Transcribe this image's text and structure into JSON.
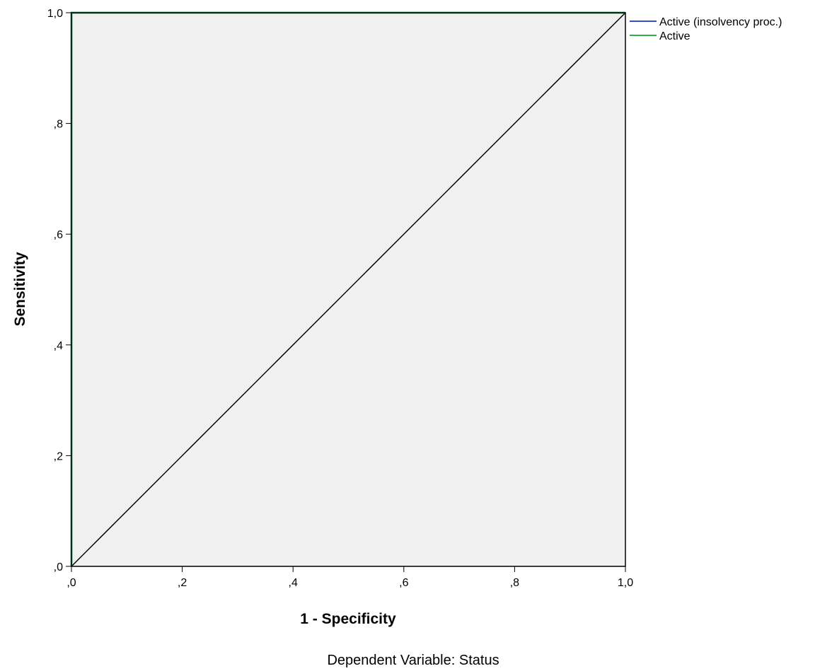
{
  "chart_data": {
    "type": "line",
    "xlabel": "1 - Specificity",
    "ylabel": "Sensitivity",
    "footnote": "Dependent Variable: Status",
    "xlim": [
      0,
      1
    ],
    "ylim": [
      0,
      1
    ],
    "x_ticks": [
      0,
      0.2,
      0.4,
      0.6,
      0.8,
      1.0
    ],
    "y_ticks": [
      0,
      0.2,
      0.4,
      0.6,
      0.8,
      1.0
    ],
    "x_tick_labels": [
      ",0",
      ",2",
      ",4",
      ",6",
      ",8",
      "1,0"
    ],
    "y_tick_labels": [
      ",0",
      ",2",
      ",4",
      ",6",
      ",8",
      "1,0"
    ],
    "grid": false,
    "legend_position": "top-right outside",
    "plot_background": "#f0f0f0",
    "series": [
      {
        "name": "Active (insolvency proc.)",
        "color": "#3a4fc4",
        "x": [
          0,
          0,
          1
        ],
        "y": [
          0,
          1,
          1
        ]
      },
      {
        "name": "Active",
        "color": "#2fae4a",
        "x": [
          0,
          0,
          1
        ],
        "y": [
          0,
          1,
          1
        ]
      }
    ],
    "reference_line": {
      "color": "#000000",
      "x": [
        0,
        1
      ],
      "y": [
        0,
        1
      ]
    }
  }
}
